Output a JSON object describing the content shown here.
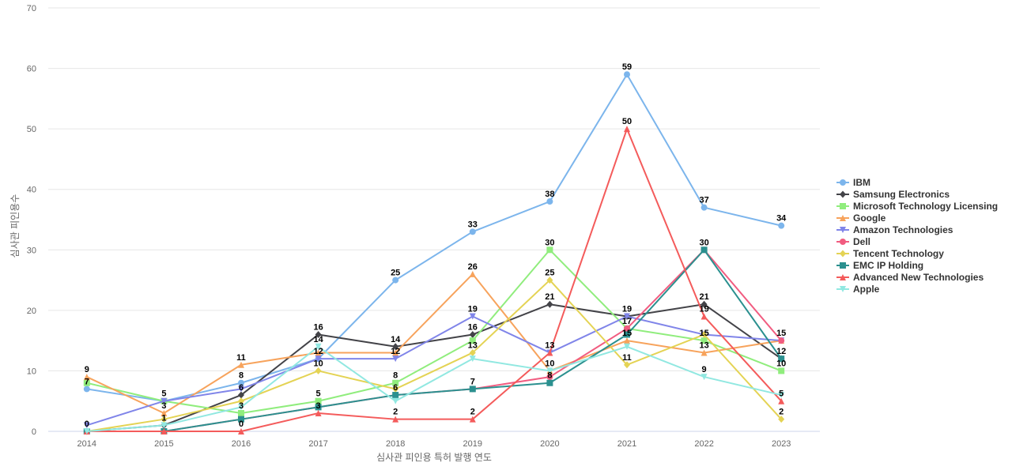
{
  "chart_data": {
    "type": "line",
    "xlabel": "심사관 피인용 특허 발행 연도",
    "ylabel": "심사관 피인용수",
    "ylim": [
      0,
      70
    ],
    "yticks": [
      0,
      10,
      20,
      30,
      40,
      50,
      60,
      70
    ],
    "grid": true,
    "legend_position": "right",
    "categories": [
      "2014",
      "2015",
      "2016",
      "2017",
      "2018",
      "2019",
      "2020",
      "2021",
      "2022",
      "2023"
    ],
    "series": [
      {
        "name": "IBM",
        "color": "#7cb5ec",
        "marker": "circle",
        "values": [
          7,
          5,
          8,
          12,
          25,
          33,
          38,
          59,
          37,
          34
        ]
      },
      {
        "name": "Samsung Electronics",
        "color": "#434348",
        "marker": "diamond",
        "values": [
          0,
          1,
          6,
          16,
          14,
          16,
          21,
          19,
          21,
          12
        ]
      },
      {
        "name": "Microsoft Technology Licensing",
        "color": "#90ed7d",
        "marker": "square",
        "values": [
          8,
          5,
          3,
          5,
          8,
          15,
          30,
          17,
          15,
          10
        ]
      },
      {
        "name": "Google",
        "color": "#f7a35c",
        "marker": "triangle",
        "values": [
          9,
          3,
          11,
          13,
          13,
          26,
          10,
          15,
          13,
          15
        ]
      },
      {
        "name": "Amazon Technologies",
        "color": "#8085e9",
        "marker": "triangle-down",
        "values": [
          1,
          5,
          7,
          12,
          12,
          19,
          13,
          19,
          16,
          15
        ]
      },
      {
        "name": "Dell",
        "color": "#f15c80",
        "marker": "circle",
        "values": [
          0,
          0,
          2,
          4,
          6,
          7,
          9,
          17,
          30,
          15
        ]
      },
      {
        "name": "Tencent Technology",
        "color": "#e4d354",
        "marker": "diamond",
        "values": [
          0,
          2,
          5,
          10,
          7,
          13,
          25,
          11,
          16,
          2
        ]
      },
      {
        "name": "EMC IP Holding",
        "color": "#2b908f",
        "marker": "square",
        "values": [
          0,
          0,
          2,
          4,
          6,
          7,
          8,
          16,
          30,
          12
        ]
      },
      {
        "name": "Advanced New Technologies",
        "color": "#f45b5b",
        "marker": "triangle",
        "values": [
          0,
          0,
          0,
          3,
          2,
          2,
          13,
          50,
          19,
          5
        ]
      },
      {
        "name": "Apple",
        "color": "#91e8e1",
        "marker": "triangle-down",
        "values": [
          0,
          1,
          4,
          14,
          5,
          12,
          10,
          14,
          9,
          6
        ]
      }
    ],
    "labels": [
      {
        "x": "2014",
        "y": 9,
        "text": "9"
      },
      {
        "x": "2014",
        "y": 7,
        "text": "7"
      },
      {
        "x": "2014",
        "y": 0,
        "text": "0"
      },
      {
        "x": "2015",
        "y": 5,
        "text": "5"
      },
      {
        "x": "2015",
        "y": 3,
        "text": "3"
      },
      {
        "x": "2015",
        "y": 1,
        "text": "1"
      },
      {
        "x": "2016",
        "y": 11,
        "text": "11"
      },
      {
        "x": "2016",
        "y": 8,
        "text": "8"
      },
      {
        "x": "2016",
        "y": 6,
        "text": "6"
      },
      {
        "x": "2016",
        "y": 3,
        "text": "3"
      },
      {
        "x": "2016",
        "y": 0,
        "text": "0"
      },
      {
        "x": "2017",
        "y": 16,
        "text": "16"
      },
      {
        "x": "2017",
        "y": 14,
        "text": "14"
      },
      {
        "x": "2017",
        "y": 12,
        "text": "12"
      },
      {
        "x": "2017",
        "y": 10,
        "text": "10"
      },
      {
        "x": "2017",
        "y": 5,
        "text": "5"
      },
      {
        "x": "2017",
        "y": 3,
        "text": "3"
      },
      {
        "x": "2018",
        "y": 25,
        "text": "25"
      },
      {
        "x": "2018",
        "y": 14,
        "text": "14"
      },
      {
        "x": "2018",
        "y": 12,
        "text": "12"
      },
      {
        "x": "2018",
        "y": 8,
        "text": "8"
      },
      {
        "x": "2018",
        "y": 6,
        "text": "6"
      },
      {
        "x": "2018",
        "y": 2,
        "text": "2"
      },
      {
        "x": "2019",
        "y": 33,
        "text": "33"
      },
      {
        "x": "2019",
        "y": 26,
        "text": "26"
      },
      {
        "x": "2019",
        "y": 19,
        "text": "19"
      },
      {
        "x": "2019",
        "y": 16,
        "text": "16"
      },
      {
        "x": "2019",
        "y": 13,
        "text": "13"
      },
      {
        "x": "2019",
        "y": 7,
        "text": "7"
      },
      {
        "x": "2019",
        "y": 2,
        "text": "2"
      },
      {
        "x": "2020",
        "y": 38,
        "text": "38"
      },
      {
        "x": "2020",
        "y": 30,
        "text": "30"
      },
      {
        "x": "2020",
        "y": 25,
        "text": "25"
      },
      {
        "x": "2020",
        "y": 21,
        "text": "21"
      },
      {
        "x": "2020",
        "y": 13,
        "text": "13"
      },
      {
        "x": "2020",
        "y": 10,
        "text": "10"
      },
      {
        "x": "2020",
        "y": 8,
        "text": "8"
      },
      {
        "x": "2021",
        "y": 59,
        "text": "59"
      },
      {
        "x": "2021",
        "y": 50,
        "text": "50"
      },
      {
        "x": "2021",
        "y": 19,
        "text": "19"
      },
      {
        "x": "2021",
        "y": 17,
        "text": "17"
      },
      {
        "x": "2021",
        "y": 15,
        "text": "15"
      },
      {
        "x": "2021",
        "y": 11,
        "text": "11"
      },
      {
        "x": "2022",
        "y": 37,
        "text": "37"
      },
      {
        "x": "2022",
        "y": 30,
        "text": "30"
      },
      {
        "x": "2022",
        "y": 21,
        "text": "21"
      },
      {
        "x": "2022",
        "y": 19,
        "text": "19"
      },
      {
        "x": "2022",
        "y": 15,
        "text": "15"
      },
      {
        "x": "2022",
        "y": 13,
        "text": "13"
      },
      {
        "x": "2022",
        "y": 9,
        "text": "9"
      },
      {
        "x": "2023",
        "y": 34,
        "text": "34"
      },
      {
        "x": "2023",
        "y": 15,
        "text": "15"
      },
      {
        "x": "2023",
        "y": 12,
        "text": "12"
      },
      {
        "x": "2023",
        "y": 10,
        "text": "10"
      },
      {
        "x": "2023",
        "y": 5,
        "text": "5"
      },
      {
        "x": "2023",
        "y": 2,
        "text": "2"
      }
    ]
  }
}
